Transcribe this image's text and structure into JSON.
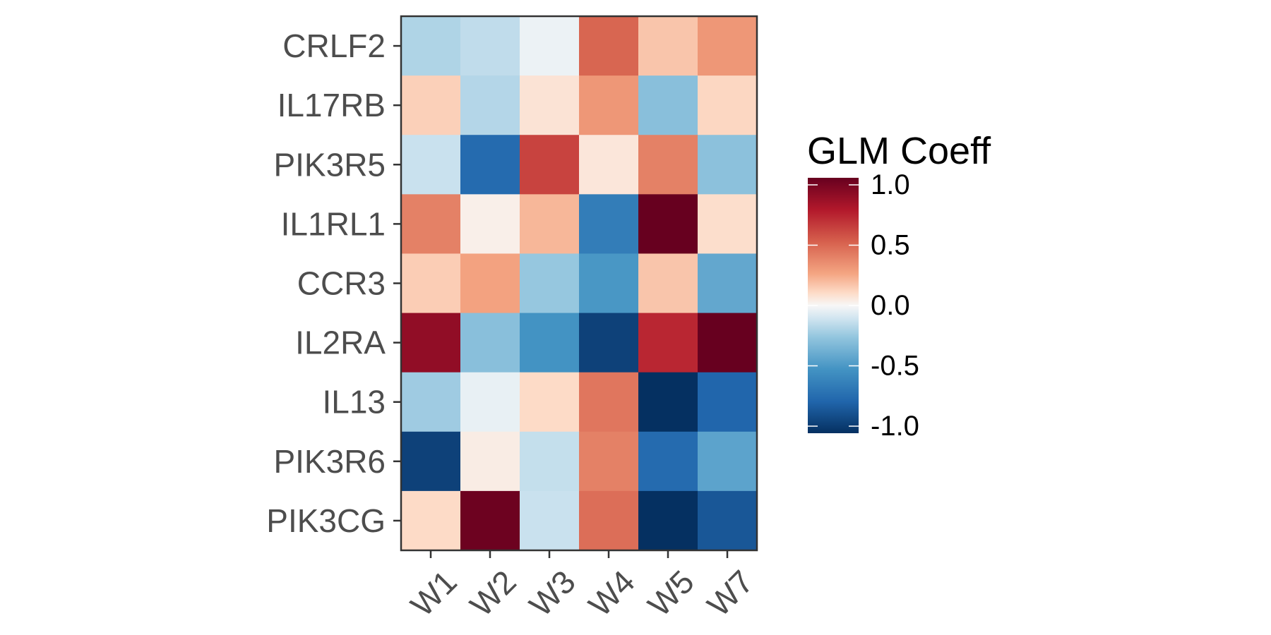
{
  "chart_data": {
    "type": "heatmap",
    "title": "",
    "xlabel": "",
    "ylabel": "",
    "x_categories": [
      "W1",
      "W2",
      "W3",
      "W4",
      "W5",
      "W7"
    ],
    "y_categories": [
      "CRLF2",
      "IL17RB",
      "PIK3R5",
      "IL1RL1",
      "CCR3",
      "IL2RA",
      "IL13",
      "PIK3R6",
      "PIK3CG"
    ],
    "values": [
      [
        -0.18,
        -0.14,
        -0.03,
        0.48,
        0.16,
        0.3
      ],
      [
        0.13,
        -0.17,
        0.07,
        0.3,
        -0.28,
        0.11
      ],
      [
        -0.12,
        -0.72,
        0.6,
        0.06,
        0.38,
        -0.27
      ],
      [
        0.38,
        0.03,
        0.2,
        -0.62,
        1.0,
        0.09
      ],
      [
        0.14,
        0.26,
        -0.24,
        -0.48,
        0.16,
        -0.4
      ],
      [
        0.86,
        -0.28,
        -0.5,
        -0.92,
        0.7,
        1.05
      ],
      [
        -0.22,
        -0.04,
        0.1,
        0.42,
        -1.05,
        -0.75
      ],
      [
        -0.92,
        0.04,
        -0.13,
        0.38,
        -0.72,
        -0.42
      ],
      [
        0.1,
        0.98,
        -0.12,
        0.45,
        -1.05,
        -0.82
      ]
    ],
    "colorbar": {
      "title": "GLM Coeff",
      "range": [
        -1.0,
        1.0
      ],
      "ticks": [
        1.0,
        0.5,
        0.0,
        -0.5,
        -1.0
      ],
      "tick_labels": [
        "1.0",
        "0.5",
        "0.0",
        "-0.5",
        "-1.0"
      ],
      "colors": {
        "low": "#053061",
        "mid": "#f7f7f7",
        "high": "#67001f"
      }
    },
    "legend_position": "right",
    "grid": false
  }
}
